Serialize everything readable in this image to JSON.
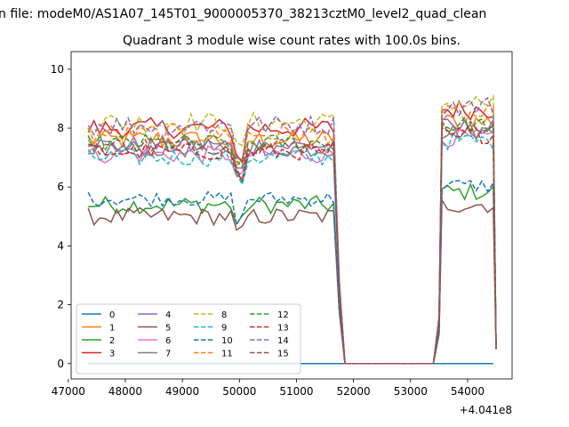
{
  "figure": {
    "suptitle": "n file: modeM0/AS1A07_145T01_9000005370_38213cztM0_level2_quad_clean",
    "title": "Quadrant 3 module wise count rates with 100.0s bins.",
    "offset_text": "+4.041e8"
  },
  "chart_data": {
    "type": "line",
    "title": "Quadrant 3 module wise count rates with 100.0s bins.",
    "xlabel": "",
    "ylabel": "",
    "x_offset": 404100000,
    "xlim": [
      47050,
      54780
    ],
    "ylim": [
      -0.52,
      10.6
    ],
    "x_ticks": [
      47000,
      48000,
      49000,
      50000,
      51000,
      52000,
      53000,
      54000
    ],
    "x_tick_labels": [
      "47000",
      "48000",
      "49000",
      "50000",
      "51000",
      "52000",
      "53000",
      "54000"
    ],
    "y_ticks": [
      0,
      2,
      4,
      6,
      8,
      10
    ],
    "y_tick_labels": [
      "0",
      "2",
      "4",
      "6",
      "8",
      "10"
    ],
    "grid": false,
    "legend": {
      "placement": "lower-left",
      "columns": 4
    },
    "segments": {
      "active1": [
        47350,
        51700
      ],
      "drop": [
        51700,
        51850
      ],
      "gap": [
        51850,
        53400
      ],
      "rise": [
        53400,
        53550
      ],
      "active2": [
        53550,
        54500
      ],
      "bin": 100
    },
    "series": [
      {
        "name": "0",
        "color": "#1f77b4",
        "dash": "solid",
        "level": 0.0,
        "amp": 0.0
      },
      {
        "name": "1",
        "color": "#ff7f0e",
        "dash": "solid",
        "level": 7.6,
        "amp": 0.35
      },
      {
        "name": "2",
        "color": "#2ca02c",
        "dash": "solid",
        "level": 5.4,
        "amp": 0.3
      },
      {
        "name": "3",
        "color": "#d62728",
        "dash": "solid",
        "level": 8.0,
        "amp": 0.35
      },
      {
        "name": "4",
        "color": "#9467bd",
        "dash": "solid",
        "level": 7.4,
        "amp": 0.35
      },
      {
        "name": "5",
        "color": "#8c564b",
        "dash": "solid",
        "level": 5.0,
        "amp": 0.3
      },
      {
        "name": "6",
        "color": "#e377c2",
        "dash": "solid",
        "level": 7.1,
        "amp": 0.3
      },
      {
        "name": "7",
        "color": "#7f7f7f",
        "dash": "solid",
        "level": 7.3,
        "amp": 0.3
      },
      {
        "name": "8",
        "color": "#bcbd22",
        "dash": "dashed",
        "level": 8.2,
        "amp": 0.35
      },
      {
        "name": "9",
        "color": "#17becf",
        "dash": "dashed",
        "level": 7.0,
        "amp": 0.3
      },
      {
        "name": "10",
        "color": "#1f77b4",
        "dash": "dashed",
        "level": 5.6,
        "amp": 0.25
      },
      {
        "name": "11",
        "color": "#ff7f0e",
        "dash": "dashed",
        "level": 7.8,
        "amp": 0.35
      },
      {
        "name": "12",
        "color": "#2ca02c",
        "dash": "dashed",
        "level": 7.5,
        "amp": 0.3
      },
      {
        "name": "13",
        "color": "#d62728",
        "dash": "dashed",
        "level": 7.2,
        "amp": 0.3
      },
      {
        "name": "14",
        "color": "#9467bd",
        "dash": "dashed",
        "level": 8.1,
        "amp": 0.35
      },
      {
        "name": "15",
        "color": "#8c564b",
        "dash": "dashed",
        "level": 7.4,
        "amp": 0.3
      }
    ]
  }
}
